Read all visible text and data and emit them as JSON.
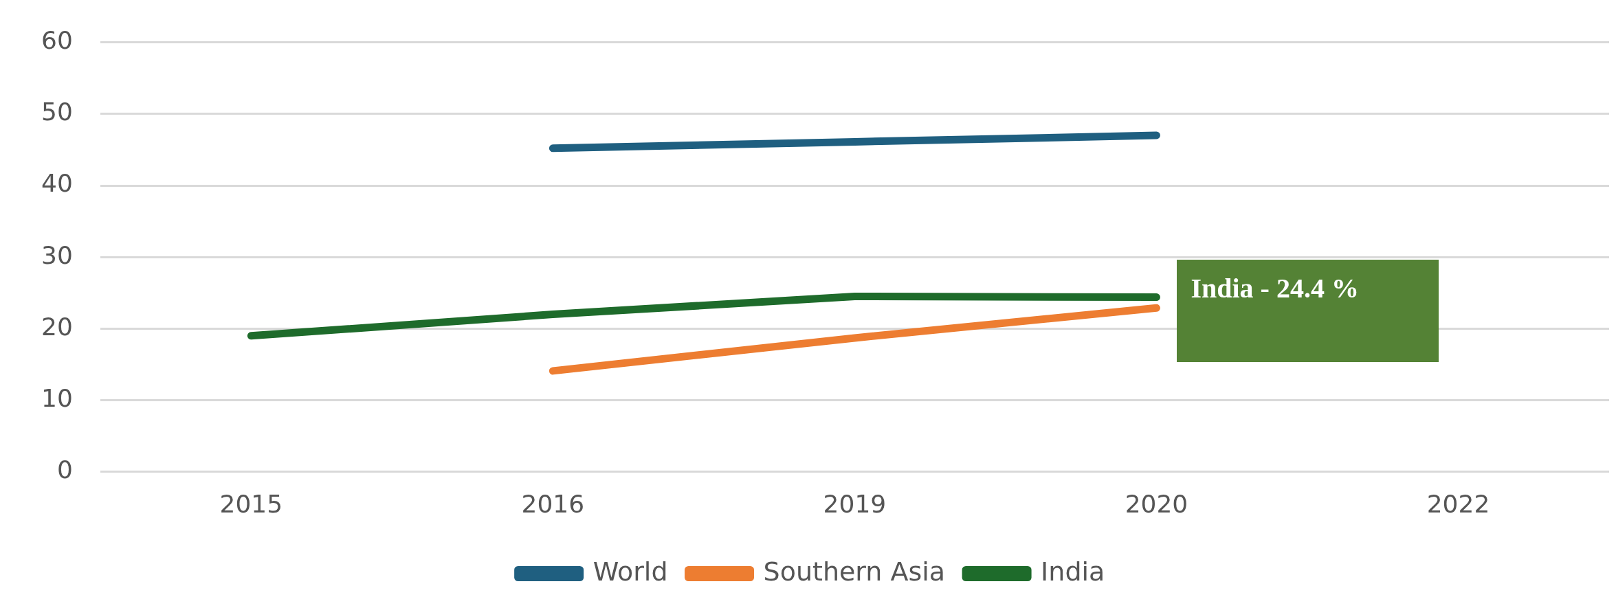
{
  "chart_data": {
    "type": "line",
    "categories": [
      "2015",
      "2016",
      "2019",
      "2020",
      "2022"
    ],
    "series": [
      {
        "name": "World",
        "color": "#1f5f80",
        "values": [
          null,
          45.2,
          46.1,
          47.0,
          null
        ]
      },
      {
        "name": "Southern Asia",
        "color": "#ed7d31",
        "values": [
          null,
          14.1,
          18.7,
          22.9,
          null
        ]
      },
      {
        "name": "India",
        "color": "#1e6b2b",
        "values": [
          19.0,
          22.0,
          24.5,
          24.4,
          null
        ]
      }
    ],
    "ylim": [
      0,
      60
    ],
    "yticks": [
      0,
      10,
      20,
      30,
      40,
      50,
      60
    ],
    "grid": "y",
    "legend": "bottom",
    "marker": "none",
    "line_style": "solid",
    "annotations": [
      {
        "text": "India - 24.4 %",
        "x": "2020",
        "y": 24.4
      }
    ]
  }
}
